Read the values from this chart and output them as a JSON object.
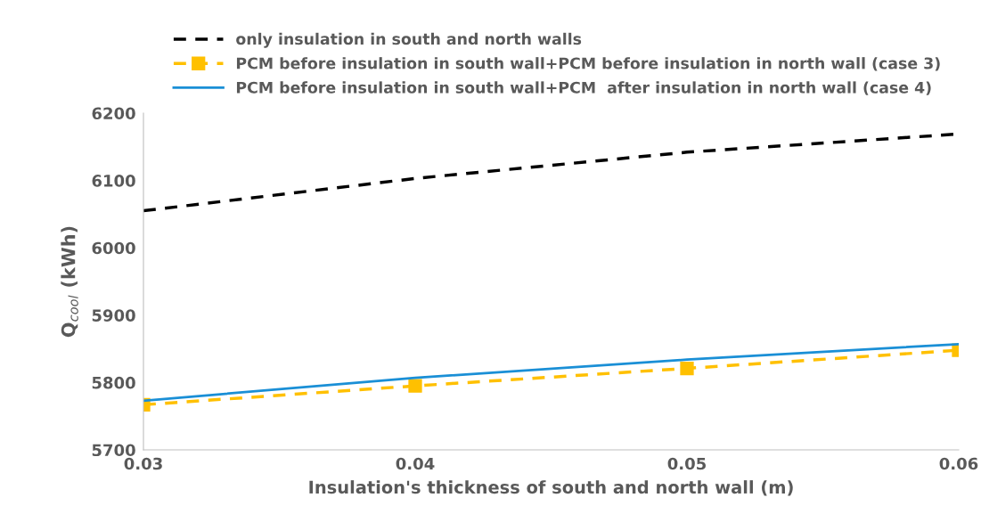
{
  "chart_data": {
    "type": "line",
    "xlabel": "Insulation's thickness of south and north wall (m)",
    "ylabel": "Q$_{cool}$ (kWh)",
    "x": [
      0.03,
      0.04,
      0.05,
      0.06
    ],
    "xlim": [
      0.03,
      0.06
    ],
    "xticks": [
      {
        "value": 0.03,
        "label": "0.03"
      },
      {
        "value": 0.04,
        "label": "0.04"
      },
      {
        "value": 0.05,
        "label": "0.05"
      },
      {
        "value": 0.06,
        "label": "0.06"
      }
    ],
    "ylim": [
      5700,
      6200
    ],
    "yticks": [
      5700,
      5800,
      5900,
      6000,
      6100,
      6200
    ],
    "grid": false,
    "legend": "top",
    "series": [
      {
        "name": "only insulation in south and north walls",
        "color": "#000000",
        "line_style": "dashed",
        "marker": "none",
        "values": [
          6055,
          6103,
          6142,
          6169
        ]
      },
      {
        "name": "PCM before insulation in south wall+PCM before insulation in north wall (case 3)",
        "color": "#ffc000",
        "line_style": "dashed",
        "marker": "square",
        "values": [
          5767,
          5795,
          5821,
          5848
        ]
      },
      {
        "name": "PCM before insulation in south wall+PCM  after insulation in north wall (case 4)",
        "color": "#1a8fd6",
        "line_style": "solid",
        "marker": "none",
        "values": [
          5773,
          5807,
          5834,
          5857
        ]
      }
    ]
  }
}
